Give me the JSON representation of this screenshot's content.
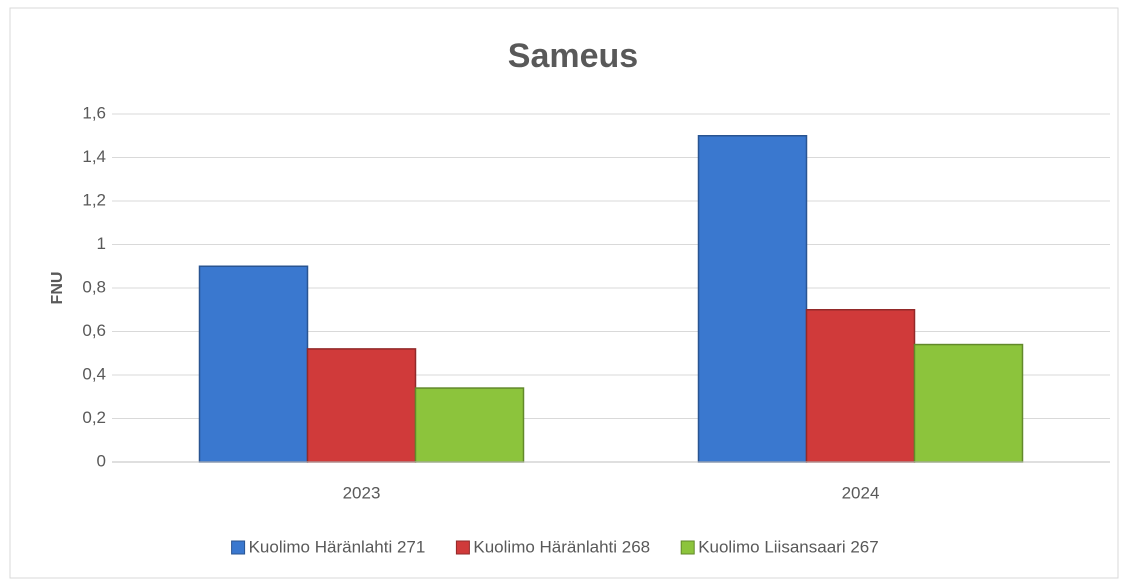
{
  "chart_data": {
    "type": "bar",
    "title": "Sameus",
    "y_label": "FNU",
    "categories": [
      "2023",
      "2024"
    ],
    "series": [
      {
        "name": "Kuolimo Häränlahti 271",
        "color": "#3a78cf",
        "values": [
          0.9,
          1.5
        ]
      },
      {
        "name": "Kuolimo Häränlahti 268",
        "color": "#d03a3a",
        "values": [
          0.52,
          0.7
        ]
      },
      {
        "name": "Kuolimo Liisansaari 267",
        "color": "#8cc43c",
        "values": [
          0.34,
          0.54
        ]
      }
    ],
    "ylim": [
      0,
      1.6
    ],
    "yticks": [
      0,
      {
        "value": 0.2,
        "label": "0,2"
      },
      {
        "value": 0.4,
        "label": "0,4"
      },
      {
        "value": 0.6,
        "label": "0,6"
      },
      {
        "value": 0.8,
        "label": "0,8"
      },
      1,
      {
        "value": 1.2,
        "label": "1,2"
      },
      {
        "value": 1.4,
        "label": "1,4"
      },
      {
        "value": 1.6,
        "label": "1,6"
      }
    ],
    "grid": true,
    "legend": "bottom"
  }
}
